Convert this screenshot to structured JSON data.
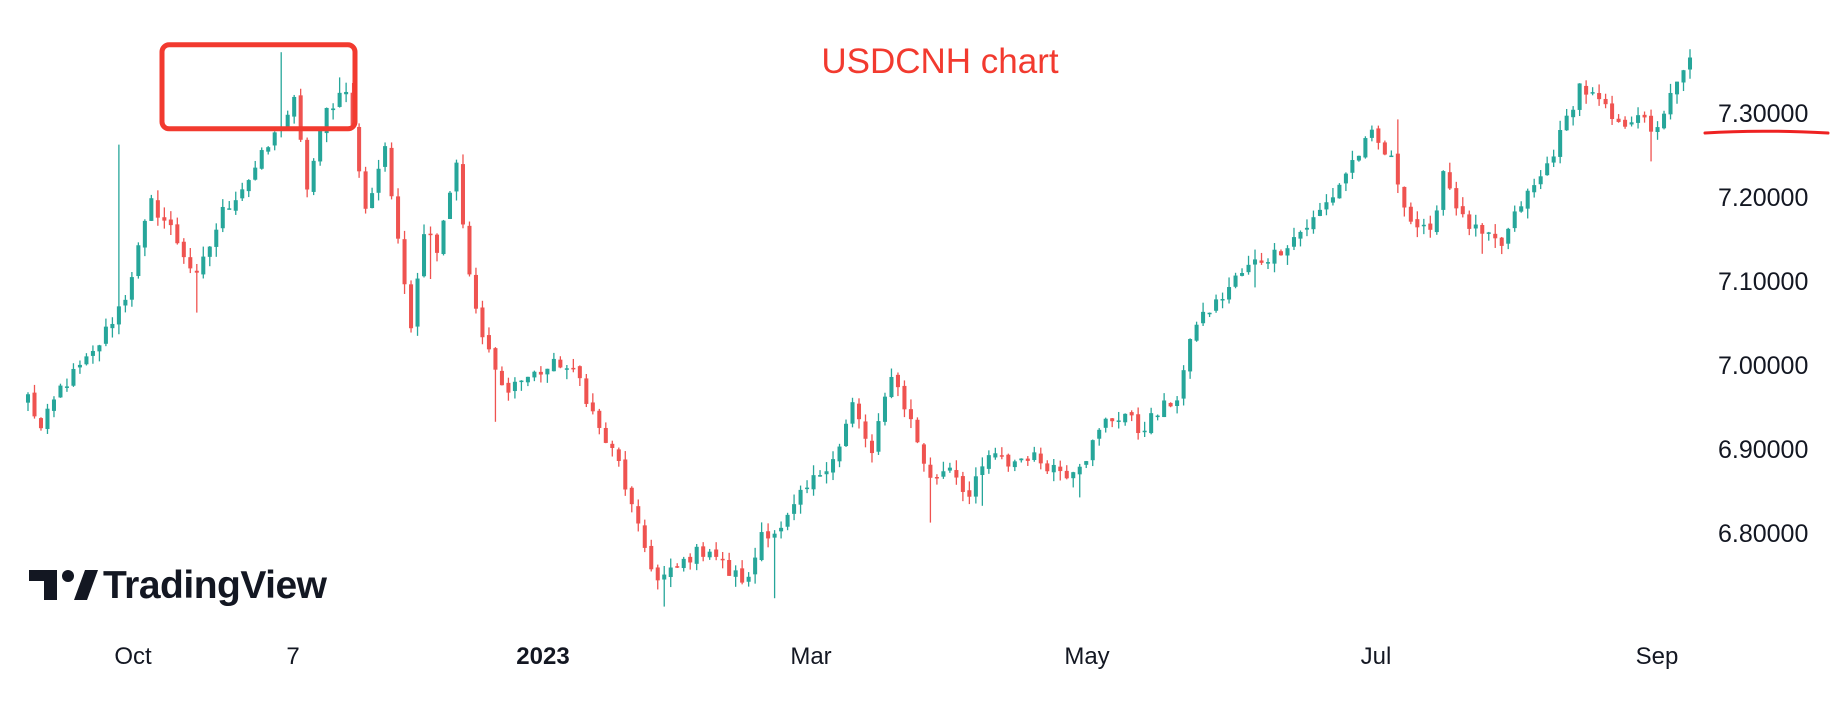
{
  "chart_data": {
    "type": "candlestick",
    "title": "USDCNH chart",
    "x_ticks": [
      {
        "label": "Oct",
        "bold": false
      },
      {
        "label": "7",
        "bold": false
      },
      {
        "label": "2023",
        "bold": true
      },
      {
        "label": "Mar",
        "bold": false
      },
      {
        "label": "May",
        "bold": false
      },
      {
        "label": "Jul",
        "bold": false
      },
      {
        "label": "Sep",
        "bold": false
      }
    ],
    "y_ticks": [
      "7.30000",
      "7.20000",
      "7.10000",
      "7.00000",
      "6.90000",
      "6.80000"
    ],
    "ylim": [
      6.7,
      7.4
    ],
    "up_color": "#26a69a",
    "down_color": "#ef5350",
    "highlighted_level": 7.3,
    "annotation_box_range": [
      7.28,
      7.38
    ],
    "close_waypoints": [
      [
        0,
        6.96
      ],
      [
        2,
        6.92
      ],
      [
        5,
        6.97
      ],
      [
        10,
        7.01
      ],
      [
        15,
        7.08
      ],
      [
        19,
        7.19
      ],
      [
        22,
        7.16
      ],
      [
        26,
        7.1
      ],
      [
        30,
        7.18
      ],
      [
        34,
        7.22
      ],
      [
        38,
        7.27
      ],
      [
        41,
        7.31
      ],
      [
        43,
        7.21
      ],
      [
        46,
        7.3
      ],
      [
        49,
        7.33
      ],
      [
        52,
        7.18
      ],
      [
        55,
        7.26
      ],
      [
        57,
        7.14
      ],
      [
        59,
        7.05
      ],
      [
        61,
        7.16
      ],
      [
        63,
        7.14
      ],
      [
        66,
        7.24
      ],
      [
        68,
        7.1
      ],
      [
        70,
        7.03
      ],
      [
        73,
        6.97
      ],
      [
        76,
        6.98
      ],
      [
        79,
        6.99
      ],
      [
        82,
        7.0
      ],
      [
        85,
        6.98
      ],
      [
        88,
        6.92
      ],
      [
        91,
        6.88
      ],
      [
        94,
        6.8
      ],
      [
        97,
        6.74
      ],
      [
        99,
        6.75
      ],
      [
        102,
        6.77
      ],
      [
        105,
        6.78
      ],
      [
        108,
        6.75
      ],
      [
        111,
        6.74
      ],
      [
        113,
        6.8
      ],
      [
        116,
        6.8
      ],
      [
        119,
        6.84
      ],
      [
        122,
        6.87
      ],
      [
        125,
        6.9
      ],
      [
        127,
        6.95
      ],
      [
        130,
        6.89
      ],
      [
        133,
        6.99
      ],
      [
        136,
        6.93
      ],
      [
        139,
        6.86
      ],
      [
        142,
        6.88
      ],
      [
        145,
        6.84
      ],
      [
        148,
        6.89
      ],
      [
        151,
        6.88
      ],
      [
        154,
        6.89
      ],
      [
        157,
        6.88
      ],
      [
        160,
        6.87
      ],
      [
        163,
        6.89
      ],
      [
        166,
        6.93
      ],
      [
        169,
        6.94
      ],
      [
        171,
        6.92
      ],
      [
        174,
        6.94
      ],
      [
        177,
        6.96
      ],
      [
        180,
        7.05
      ],
      [
        183,
        7.07
      ],
      [
        186,
        7.1
      ],
      [
        189,
        7.12
      ],
      [
        192,
        7.13
      ],
      [
        195,
        7.15
      ],
      [
        198,
        7.17
      ],
      [
        201,
        7.2
      ],
      [
        204,
        7.24
      ],
      [
        207,
        7.27
      ],
      [
        210,
        7.24
      ],
      [
        213,
        7.17
      ],
      [
        216,
        7.15
      ],
      [
        218,
        7.23
      ],
      [
        221,
        7.17
      ],
      [
        224,
        7.15
      ],
      [
        227,
        7.14
      ],
      [
        230,
        7.19
      ],
      [
        233,
        7.22
      ],
      [
        236,
        7.27
      ],
      [
        239,
        7.33
      ],
      [
        242,
        7.31
      ],
      [
        245,
        7.28
      ],
      [
        248,
        7.3
      ],
      [
        250,
        7.27
      ],
      [
        252,
        7.3
      ],
      [
        254,
        7.33
      ],
      [
        256,
        7.36
      ]
    ],
    "wick_spikes": [
      [
        14,
        7.26,
        "high"
      ],
      [
        26,
        7.06,
        "low"
      ],
      [
        39,
        7.37,
        "high"
      ],
      [
        48,
        7.34,
        "high"
      ],
      [
        62,
        7.1,
        "low"
      ],
      [
        72,
        6.93,
        "low"
      ],
      [
        98,
        6.71,
        "low"
      ],
      [
        115,
        6.72,
        "low"
      ],
      [
        139,
        6.81,
        "low"
      ],
      [
        147,
        6.83,
        "low"
      ],
      [
        162,
        6.84,
        "low"
      ],
      [
        189,
        7.09,
        "low"
      ],
      [
        211,
        7.29,
        "high"
      ],
      [
        224,
        7.13,
        "low"
      ],
      [
        250,
        7.24,
        "low"
      ]
    ]
  },
  "branding": {
    "logo_text": "TradingView"
  }
}
